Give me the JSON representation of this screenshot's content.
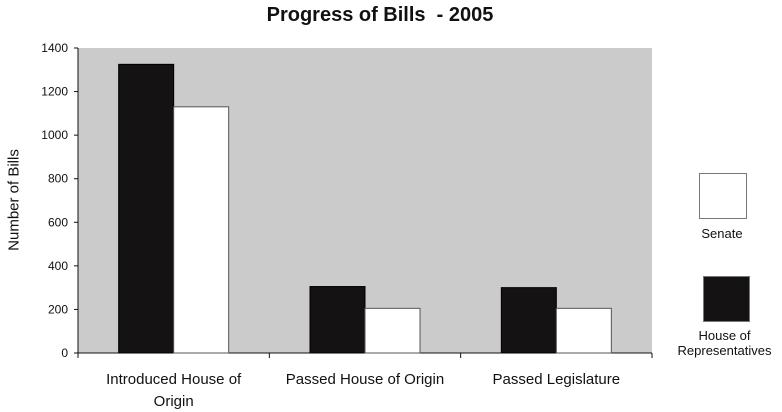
{
  "chart_data": {
    "type": "bar",
    "title": "Progress of Bills  - 2005",
    "xlabel": "",
    "ylabel": "Number of Bills",
    "ylim": [
      0,
      1400
    ],
    "yticks": [
      0,
      200,
      400,
      600,
      800,
      1000,
      1200,
      1400
    ],
    "categories": [
      [
        "Introduced House of",
        "Origin"
      ],
      [
        "Passed House of Origin"
      ],
      [
        "Passed Legislature"
      ]
    ],
    "series": [
      {
        "name": "House of Representatives",
        "label_lines": [
          "House of",
          "Representatives"
        ],
        "color": "#141212",
        "values": [
          1325,
          305,
          300
        ]
      },
      {
        "name": "Senate",
        "label_lines": [
          "Senate"
        ],
        "color": "#ffffff",
        "values": [
          1130,
          205,
          205
        ]
      }
    ],
    "plot_background": "#cbcbcb",
    "grid": false,
    "legend_position": "right"
  }
}
